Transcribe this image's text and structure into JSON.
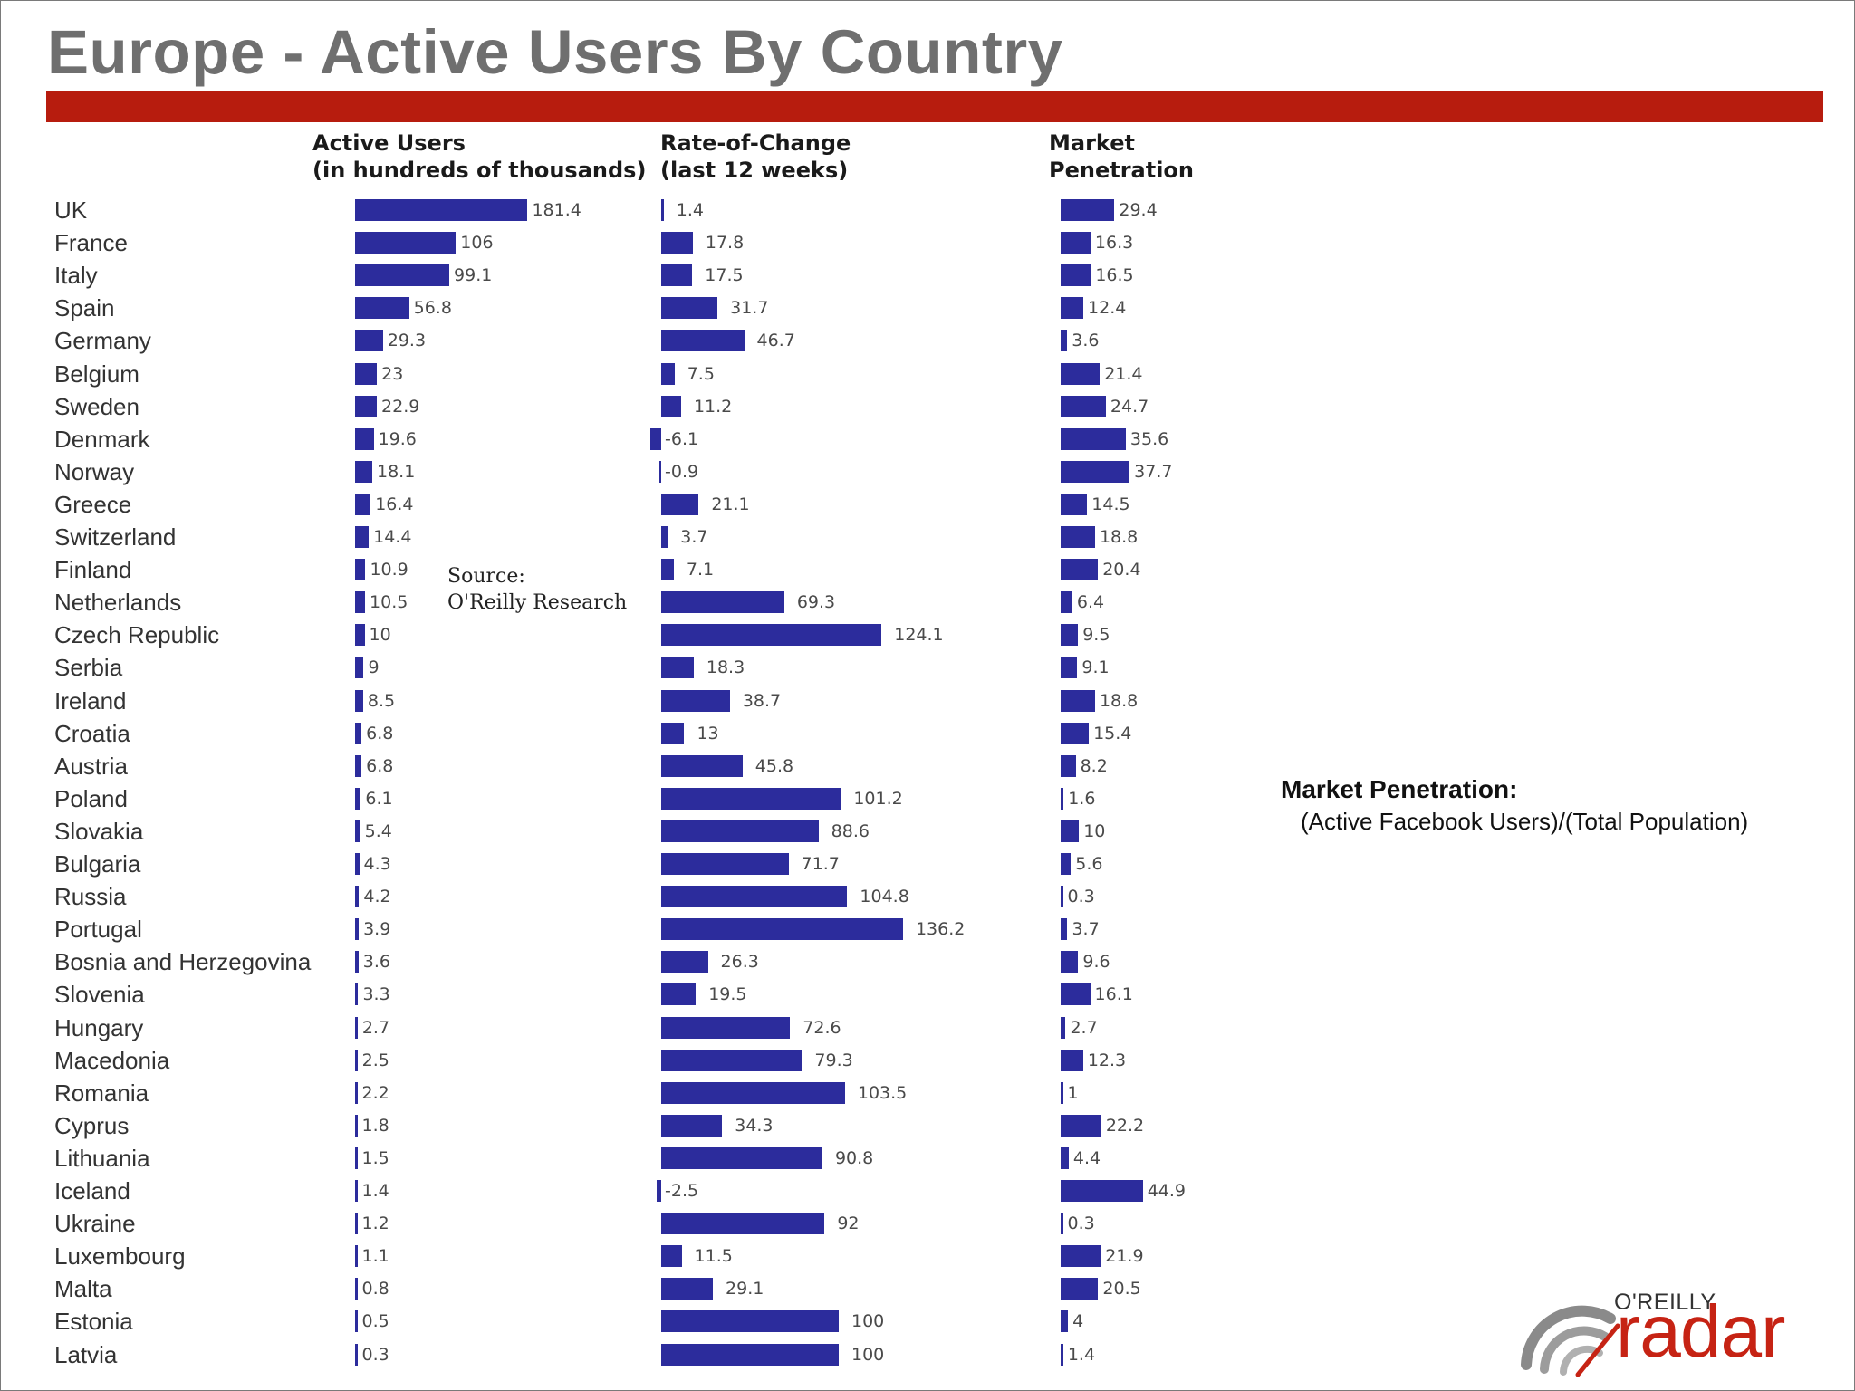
{
  "slide": {
    "title": "Europe - Active Users By Country"
  },
  "source": {
    "label": "Source:",
    "name": "O'Reilly Research"
  },
  "definition": {
    "title": "Market Penetration:",
    "formula": "(Active Facebook Users)/(Total Population)"
  },
  "logo": {
    "brand_small": "O'REILLY",
    "brand_large": "radar"
  },
  "colors": {
    "bar": "#2c2c9c",
    "title_rule": "#b71c0e",
    "title_text": "#6f6f6f",
    "logo_red": "#c62314"
  },
  "chart_data": {
    "type": "bar",
    "orientation": "horizontal",
    "categories": [
      "UK",
      "France",
      "Italy",
      "Spain",
      "Germany",
      "Belgium",
      "Sweden",
      "Denmark",
      "Norway",
      "Greece",
      "Switzerland",
      "Finland",
      "Netherlands",
      "Czech Republic",
      "Serbia",
      "Ireland",
      "Croatia",
      "Austria",
      "Poland",
      "Slovakia",
      "Bulgaria",
      "Russia",
      "Portugal",
      "Bosnia and Herzegovina",
      "Slovenia",
      "Hungary",
      "Macedonia",
      "Romania",
      "Cyprus",
      "Lithuania",
      "Iceland",
      "Ukraine",
      "Luxembourg",
      "Malta",
      "Estonia",
      "Latvia"
    ],
    "series": [
      {
        "name": "Active Users\n(in hundreds of thousands)",
        "values": [
          181.4,
          106,
          99.1,
          56.8,
          29.3,
          23,
          22.9,
          19.6,
          18.1,
          16.4,
          14.4,
          10.9,
          10.5,
          10,
          9,
          8.5,
          6.8,
          6.8,
          6.1,
          5.4,
          4.3,
          4.2,
          3.9,
          3.6,
          3.3,
          2.7,
          2.5,
          2.2,
          1.8,
          1.5,
          1.4,
          1.2,
          1.1,
          0.8,
          0.5,
          0.3
        ]
      },
      {
        "name": "Rate-of-Change\n(last 12 weeks)",
        "values": [
          1.4,
          17.8,
          17.5,
          31.7,
          46.7,
          7.5,
          11.2,
          -6.1,
          -0.9,
          21.1,
          3.7,
          7.1,
          69.3,
          124.1,
          18.3,
          38.7,
          13,
          45.8,
          101.2,
          88.6,
          71.7,
          104.8,
          136.2,
          26.3,
          19.5,
          72.6,
          79.3,
          103.5,
          34.3,
          90.8,
          -2.5,
          92,
          11.5,
          29.1,
          100,
          100
        ]
      },
      {
        "name": "Market\nPenetration",
        "values": [
          29.4,
          16.3,
          16.5,
          12.4,
          3.6,
          21.4,
          24.7,
          35.6,
          37.7,
          14.5,
          18.8,
          20.4,
          6.4,
          9.5,
          9.1,
          18.8,
          15.4,
          8.2,
          1.6,
          10,
          5.6,
          0.3,
          3.7,
          9.6,
          16.1,
          2.7,
          12.3,
          1,
          22.2,
          4.4,
          44.9,
          0.3,
          21.9,
          20.5,
          4,
          1.4
        ]
      }
    ]
  }
}
